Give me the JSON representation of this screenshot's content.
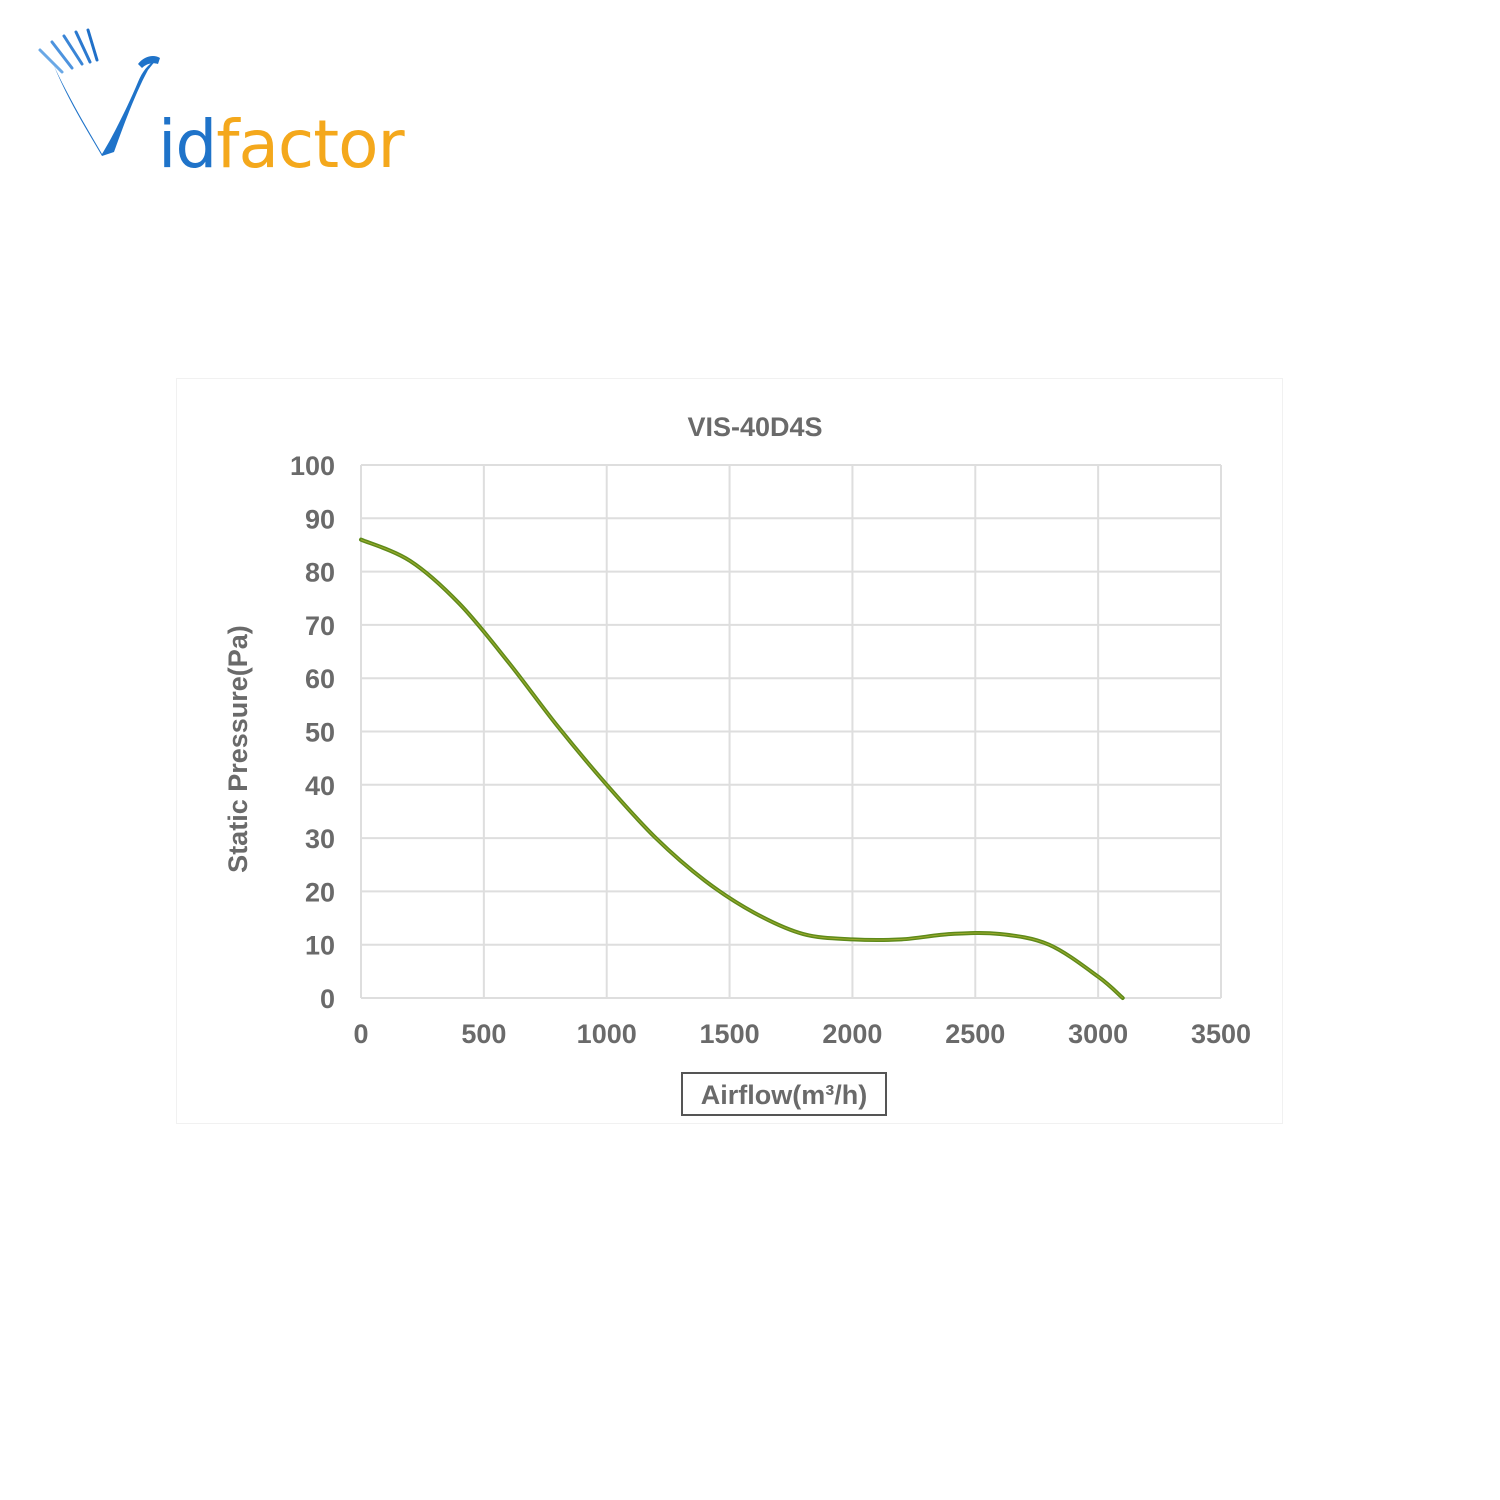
{
  "brand": {
    "name_part1": "Vid",
    "name_part2": "factor",
    "logo_color": "#1f73c9",
    "accent_color": "#f4a81c"
  },
  "chart_data": {
    "type": "line",
    "title": "VIS-40D4S",
    "xlabel": "Airflow(m³/h)",
    "ylabel": "Static Pressure(Pa)",
    "xlim": [
      0,
      3500
    ],
    "ylim": [
      0,
      100
    ],
    "x_ticks": [
      0,
      500,
      1000,
      1500,
      2000,
      2500,
      3000,
      3500
    ],
    "y_ticks": [
      0,
      10,
      20,
      30,
      40,
      50,
      60,
      70,
      80,
      90,
      100
    ],
    "grid": true,
    "line_color": "#5e8a1a",
    "series": [
      {
        "x": [
          0,
          200,
          400,
          600,
          800,
          1000,
          1200,
          1400,
          1600,
          1800,
          2000,
          2200,
          2400,
          2600,
          2800,
          3000,
          3100
        ],
        "y": [
          86,
          82,
          74,
          63,
          51,
          40,
          30,
          22,
          16,
          12,
          11,
          11,
          12,
          12,
          10,
          4,
          0
        ]
      }
    ]
  }
}
